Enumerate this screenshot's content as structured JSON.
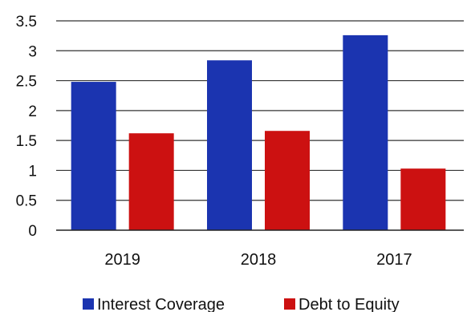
{
  "chart_data": {
    "type": "bar",
    "categories": [
      "2019",
      "2018",
      "2017"
    ],
    "series": [
      {
        "name": "Interest Coverage",
        "values": [
          2.48,
          2.84,
          3.26
        ],
        "color": "#1b34b0"
      },
      {
        "name": "Debt to Equity",
        "values": [
          1.62,
          1.66,
          1.03
        ],
        "color": "#cc1111"
      }
    ],
    "y_ticks": [
      "0",
      "0.5",
      "1",
      "1.5",
      "2",
      "2.5",
      "3",
      "3.5"
    ],
    "ylim": [
      0,
      3.5
    ],
    "grid": true,
    "legend_position": "bottom",
    "title": "",
    "xlabel": "",
    "ylabel": ""
  }
}
